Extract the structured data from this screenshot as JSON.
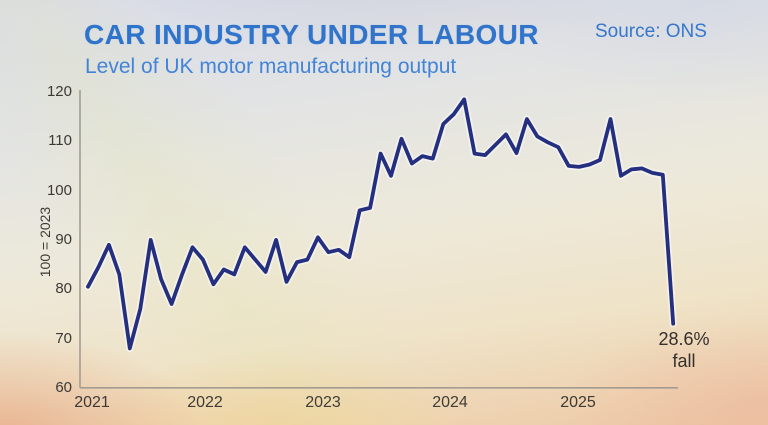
{
  "header": {
    "title": "CAR INDUSTRY UNDER LABOUR",
    "subtitle": "Level of UK motor manufacturing output",
    "source": "Source: ONS"
  },
  "annotation": {
    "line1": "28.6%",
    "line2": "fall"
  },
  "colors": {
    "title_blue": "#2f74cc",
    "subtitle_blue": "#4285d8",
    "line_navy": "#252f80",
    "axis_gray": "#a39c93",
    "text_dark": "#3d3a36"
  },
  "chart_data": {
    "type": "line",
    "title": "CAR INDUSTRY UNDER LABOUR",
    "subtitle": "Level of UK motor manufacturing output",
    "source": "Source: ONS",
    "xlabel": "",
    "ylabel": "100 = 2023",
    "ylim": [
      60,
      120
    ],
    "y_ticks": [
      120,
      110,
      100,
      90,
      80,
      70,
      60
    ],
    "x_ticks": [
      "2021",
      "2022",
      "2023",
      "2024",
      "2025"
    ],
    "frequency": "monthly",
    "x_start": "2021-01",
    "x_end": "2025-09",
    "grid": false,
    "legend": "none",
    "annotation": "28.6% fall",
    "series": [
      {
        "name": "UK motor manufacturing output (index, 100 = 2023)",
        "values": [
          80.5,
          84.5,
          89,
          83,
          68,
          76,
          90,
          82,
          77,
          83,
          88.5,
          86,
          81,
          84,
          83,
          88.5,
          86,
          83.5,
          90,
          81.5,
          85.5,
          86,
          90.5,
          87.5,
          88,
          86.5,
          96,
          96.5,
          107.5,
          103,
          110.5,
          105.5,
          107,
          106.5,
          113.5,
          115.5,
          118.5,
          107.5,
          107.2,
          109.3,
          111.4,
          107.6,
          114.5,
          111,
          109.8,
          108.8,
          105,
          104.8,
          105.3,
          106.2,
          114.5,
          103,
          104.3,
          104.5,
          103.6,
          103.2,
          73
        ]
      }
    ]
  }
}
